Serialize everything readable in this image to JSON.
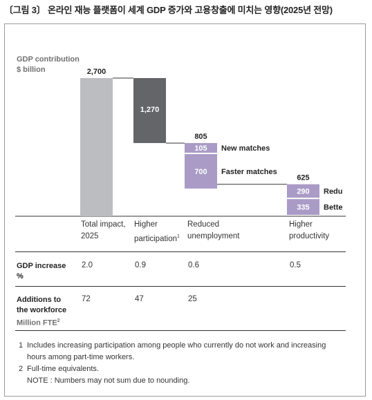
{
  "title": "〔그림 3〕 온라인 재능 플랫폼이 세계 GDP 증가와 고용창출에 미치는 영향(2025년 전망)",
  "chart_data": {
    "type": "bar",
    "ylabel_line1": "GDP contribution",
    "ylabel_line2": "$ billion",
    "colors": {
      "total": "#bcbdc0",
      "participation": "#646569",
      "segment": "#a99bc6",
      "connector": "#333333"
    },
    "bars": [
      {
        "category": "total",
        "start": 0,
        "value": 2700,
        "label": "2,700",
        "style": "total"
      },
      {
        "category": "participation",
        "start": 1430,
        "value": 1270,
        "label": "1,270",
        "style": "participation"
      },
      {
        "category": "unemployment",
        "start": 625,
        "value": 805,
        "label": "805",
        "style": "stack",
        "segments": [
          {
            "value": 105,
            "label": "105",
            "name": "New matches"
          },
          {
            "value": 700,
            "label": "700",
            "name": "Faster matches"
          }
        ]
      },
      {
        "category": "productivity",
        "start": 0,
        "value": 625,
        "label": "625",
        "style": "stack",
        "segments": [
          {
            "value": 290,
            "label": "290",
            "name": "Redu"
          },
          {
            "value": 335,
            "label": "335",
            "name": "Bette"
          }
        ]
      }
    ],
    "categories": [
      {
        "line1": "Total impact,",
        "line2": "2025",
        "sup": ""
      },
      {
        "line1": "Higher",
        "line2": "participation",
        "sup": "1"
      },
      {
        "line1": "Reduced",
        "line2": "unemployment",
        "sup": ""
      },
      {
        "line1": "Higher",
        "line2": "productivity",
        "sup": ""
      }
    ]
  },
  "table": {
    "gdp_increase": {
      "title_line1": "GDP increase",
      "title_line2": "%",
      "values": [
        "2.0",
        "0.9",
        "0.6",
        "0.5"
      ]
    },
    "workforce": {
      "title_line1": "Additions to",
      "title_line2": "the workforce",
      "title_line3": "Million FTE",
      "title_sup": "2",
      "values": [
        "72",
        "47",
        "25"
      ]
    }
  },
  "notes": [
    {
      "num": "1",
      "line1": "Includes increasing participation among people who currently do not work and increasing",
      "line2": "hours among part-time workers."
    },
    {
      "num": "2",
      "line1": "Full-time equivalents.",
      "line2": ""
    }
  ],
  "note_extra": "NOTE : Numbers may not sum due to nounding."
}
